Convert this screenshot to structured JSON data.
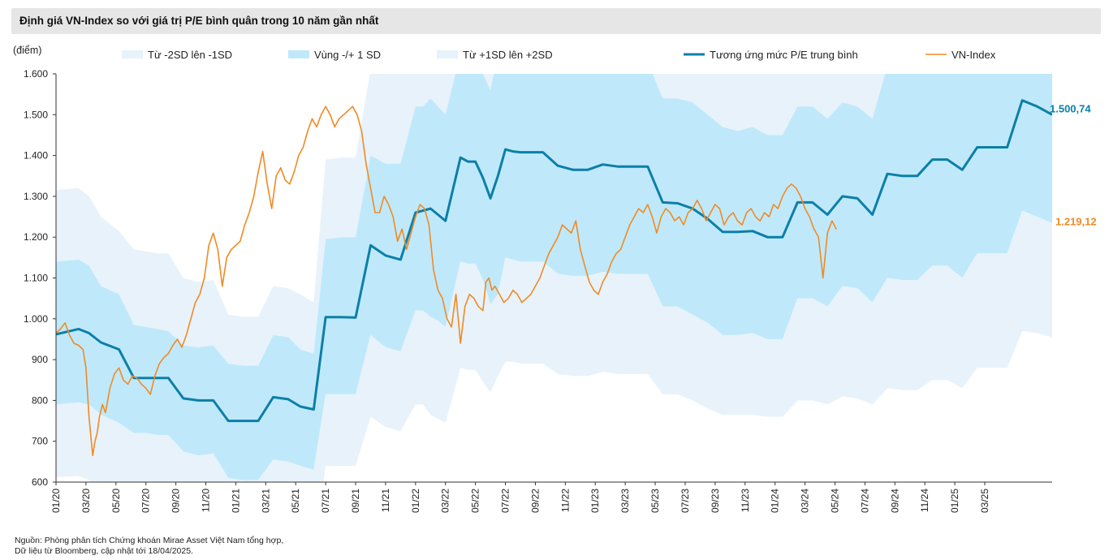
{
  "header": {
    "title": "Định giá VN-Index so với giá trị P/E bình quân trong 10 năm gần nhất"
  },
  "footer": {
    "source_line1": "Nguồn: Phòng phân tích Chứng khoán Mirae Asset Việt Nam tổng hợp,",
    "source_line2": "Dữ liệu từ Bloomberg, cập nhật tới 18/04/2025."
  },
  "colors": {
    "band_outer": "#e8f2fa",
    "band_inner": "#bfe9fa",
    "mean_line": "#0c7fa8",
    "vnindex_line": "#f08a24"
  },
  "chart_data": {
    "type": "area",
    "ylabel": "(điểm)",
    "ylim": [
      600,
      1600
    ],
    "yticks": [
      "1.600",
      "1.500",
      "1.400",
      "1.300",
      "1.200",
      "1.100",
      "1.000",
      "900",
      "800",
      "700",
      "600"
    ],
    "ytick_values": [
      1600,
      1500,
      1400,
      1300,
      1200,
      1100,
      1000,
      900,
      800,
      700,
      600
    ],
    "xlim": [
      "01/20",
      "05/25"
    ],
    "xticks": [
      "01/20",
      "03/20",
      "05/20",
      "07/20",
      "09/20",
      "11/20",
      "01/21",
      "03/21",
      "05/21",
      "07/21",
      "09/21",
      "11/21",
      "01/22",
      "03/22",
      "05/22",
      "07/22",
      "09/22",
      "11/22",
      "01/23",
      "03/23",
      "05/23",
      "07/23",
      "09/23",
      "11/23",
      "01/24",
      "03/24",
      "05/24",
      "07/24",
      "09/24",
      "11/24",
      "01/25",
      "03/25"
    ],
    "grid": false,
    "legend_position": "top",
    "legend": [
      {
        "label": "Từ -2SD lên -1SD",
        "kind": "band_outer"
      },
      {
        "label": "Vùng -/+ 1 SD",
        "kind": "band_inner"
      },
      {
        "label": "Từ +1SD lên +2SD",
        "kind": "band_outer"
      },
      {
        "label": "Tương ứng mức P/E trung bình",
        "kind": "mean_line"
      },
      {
        "label": "VN-Index",
        "kind": "vnindex_line"
      }
    ],
    "x_months": [
      0,
      1.5,
      2.2,
      3,
      4.2,
      5.2,
      6,
      6.8,
      7.5,
      8.5,
      9.5,
      10.5,
      11.5,
      12.5,
      13.5,
      14.5,
      15.5,
      16.3,
      17.2,
      18,
      19,
      20,
      21,
      22,
      23,
      24,
      24.5,
      25,
      25.5,
      26,
      27,
      27.5,
      28,
      28.5,
      29,
      29.5,
      30,
      30.5,
      31,
      31.5,
      32.5,
      33.5,
      34.5,
      35.5,
      36.5,
      37.5,
      38.5,
      39.5,
      40.5,
      41.5,
      42.5,
      43.5,
      44.5,
      45.5,
      46.5,
      47.5,
      48.5,
      49.5,
      50.5,
      51.5,
      52.5,
      53.5,
      54.5,
      55.5,
      56.5,
      57.5,
      58.5,
      59.5,
      60.5,
      61.5,
      62.5,
      63.5,
      64.5,
      65.5,
      66.5
    ],
    "mean": [
      962,
      975,
      965,
      942,
      925,
      855,
      855,
      855,
      855,
      805,
      800,
      800,
      750,
      750,
      750,
      808,
      803,
      785,
      778,
      1004,
      1004,
      1003,
      1180,
      1155,
      1145,
      1260,
      1265,
      1270,
      1255,
      1240,
      1395,
      1385,
      1385,
      1345,
      1295,
      1350,
      1415,
      1410,
      1408,
      1408,
      1408,
      1375,
      1365,
      1365,
      1378,
      1373,
      1373,
      1373,
      1285,
      1283,
      1270,
      1245,
      1213,
      1213,
      1215,
      1200,
      1200,
      1285,
      1285,
      1255,
      1300,
      1295,
      1255,
      1355,
      1350,
      1350,
      1390,
      1390,
      1365,
      1420,
      1420,
      1420,
      1535,
      1520,
      1500
    ],
    "plus1sd": [
      1140,
      1145,
      1130,
      1080,
      1060,
      985,
      980,
      975,
      970,
      935,
      930,
      935,
      890,
      885,
      885,
      960,
      955,
      925,
      915,
      1195,
      1200,
      1200,
      1400,
      1380,
      1380,
      1520,
      1520,
      1540,
      1520,
      1500,
      1650,
      1640,
      1640,
      1600,
      1560,
      1650,
      1680,
      1680,
      1680,
      1680,
      1680,
      1640,
      1630,
      1630,
      1640,
      1630,
      1630,
      1630,
      1540,
      1540,
      1530,
      1500,
      1470,
      1460,
      1470,
      1450,
      1450,
      1520,
      1520,
      1490,
      1530,
      1520,
      1490,
      1620,
      1620,
      1620,
      1660,
      1660,
      1640,
      1680,
      1690,
      1700,
      1800,
      1790,
      1780
    ],
    "minus1sd": [
      790,
      795,
      790,
      765,
      745,
      720,
      720,
      715,
      715,
      675,
      665,
      670,
      610,
      605,
      605,
      655,
      650,
      640,
      630,
      815,
      815,
      815,
      960,
      930,
      920,
      1020,
      1020,
      1005,
      995,
      980,
      1140,
      1135,
      1135,
      1095,
      1035,
      1060,
      1150,
      1145,
      1140,
      1140,
      1140,
      1110,
      1105,
      1105,
      1115,
      1110,
      1110,
      1110,
      1030,
      1030,
      1010,
      990,
      960,
      960,
      965,
      950,
      950,
      1050,
      1050,
      1030,
      1080,
      1075,
      1040,
      1100,
      1095,
      1095,
      1130,
      1130,
      1100,
      1160,
      1160,
      1160,
      1265,
      1250,
      1235
    ],
    "plus2sd": [
      1315,
      1320,
      1300,
      1250,
      1215,
      1170,
      1165,
      1160,
      1160,
      1100,
      1090,
      1095,
      1010,
      1005,
      1005,
      1080,
      1075,
      1060,
      1040,
      1390,
      1395,
      1395,
      1610,
      1605,
      1600,
      1760,
      1760,
      1790,
      1780,
      1770,
      1910,
      1890,
      1890,
      1850,
      1820,
      1880,
      1940,
      1940,
      1930,
      1930,
      1930,
      1880,
      1870,
      1870,
      1880,
      1870,
      1870,
      1870,
      1790,
      1790,
      1770,
      1740,
      1720,
      1720,
      1720,
      1700,
      1700,
      1760,
      1760,
      1740,
      1780,
      1770,
      1750,
      1860,
      1860,
      1860,
      1890,
      1890,
      1870,
      1900,
      1910,
      1920,
      2050,
      2040,
      2020
    ],
    "minus2sd": [
      612,
      615,
      605,
      580,
      560,
      545,
      545,
      540,
      540,
      505,
      495,
      500,
      430,
      425,
      425,
      470,
      465,
      445,
      425,
      640,
      640,
      640,
      760,
      735,
      725,
      790,
      790,
      765,
      755,
      745,
      880,
      875,
      875,
      845,
      820,
      860,
      895,
      895,
      890,
      890,
      890,
      865,
      860,
      860,
      870,
      865,
      865,
      865,
      815,
      815,
      800,
      780,
      765,
      765,
      765,
      760,
      760,
      800,
      800,
      790,
      810,
      805,
      790,
      830,
      825,
      825,
      850,
      850,
      830,
      880,
      880,
      880,
      970,
      965,
      955
    ],
    "vnindex_x": [
      0,
      0.3,
      0.6,
      0.9,
      1.2,
      1.5,
      1.8,
      2.0,
      2.2,
      2.45,
      2.6,
      2.75,
      2.9,
      3.1,
      3.3,
      3.6,
      3.9,
      4.2,
      4.5,
      4.8,
      5.1,
      5.4,
      5.7,
      6.0,
      6.3,
      6.6,
      6.9,
      7.2,
      7.5,
      7.8,
      8.1,
      8.4,
      8.7,
      9.0,
      9.3,
      9.6,
      9.9,
      10.2,
      10.5,
      10.8,
      11.1,
      11.4,
      11.7,
      12.0,
      12.3,
      12.6,
      12.9,
      13.2,
      13.5,
      13.8,
      14.1,
      14.4,
      14.7,
      15.0,
      15.3,
      15.6,
      15.9,
      16.2,
      16.5,
      16.8,
      17.1,
      17.4,
      17.7,
      18.0,
      18.3,
      18.6,
      18.9,
      19.2,
      19.5,
      19.8,
      20.1,
      20.4,
      20.7,
      21.0,
      21.3,
      21.6,
      21.9,
      22.2,
      22.5,
      22.8,
      23.1,
      23.4,
      23.7,
      24.0,
      24.3,
      24.6,
      24.9,
      25.2,
      25.5,
      25.8,
      26.1,
      26.4,
      26.7,
      27.0,
      27.3,
      27.6,
      27.9,
      28.2,
      28.5,
      28.7,
      28.9,
      29.1,
      29.3,
      29.6,
      29.9,
      30.2,
      30.5,
      30.8,
      31.1,
      31.4,
      31.7,
      32.0,
      32.3,
      32.6,
      32.9,
      33.2,
      33.5,
      33.8,
      34.1,
      34.4,
      34.7,
      35.0,
      35.3,
      35.6,
      35.9,
      36.2,
      36.5,
      36.8,
      37.1,
      37.4,
      37.7,
      38.0,
      38.3,
      38.6,
      38.9,
      39.2,
      39.5,
      39.8,
      40.1,
      40.4,
      40.7,
      41.0,
      41.3,
      41.6,
      41.9,
      42.2,
      42.5,
      42.8,
      43.1,
      43.4,
      43.7,
      44.0,
      44.3,
      44.6,
      44.9,
      45.2,
      45.5,
      45.8,
      46.1,
      46.4,
      46.7,
      47.0,
      47.3,
      47.6,
      47.9,
      48.2,
      48.5,
      48.8,
      49.1,
      49.4,
      49.7,
      50.0,
      50.3,
      50.6,
      50.9,
      51.2,
      51.5,
      51.8,
      52.1,
      52.4,
      52.7,
      53.0,
      53.3,
      53.6,
      53.9,
      54.2,
      54.5,
      54.8,
      55.1,
      55.4,
      55.7,
      56.0,
      56.3,
      56.6,
      56.9,
      57.2,
      57.5,
      57.8,
      58.1,
      58.4,
      58.7,
      59.0,
      59.3,
      59.6,
      59.9,
      60.2,
      60.5,
      60.8,
      61.1,
      61.4,
      61.7,
      62.0,
      62.3,
      62.6,
      62.9,
      63.2,
      63.5,
      63.8,
      64.1,
      64.4,
      64.7,
      65.0,
      65.3,
      65.45,
      65.6,
      65.75,
      65.9
    ],
    "vnindex": [
      965,
      975,
      990,
      960,
      940,
      935,
      925,
      880,
      760,
      665,
      700,
      720,
      760,
      790,
      770,
      830,
      865,
      880,
      850,
      840,
      860,
      855,
      840,
      830,
      815,
      860,
      890,
      905,
      915,
      935,
      950,
      930,
      960,
      1000,
      1040,
      1060,
      1100,
      1180,
      1210,
      1170,
      1080,
      1150,
      1170,
      1180,
      1190,
      1230,
      1260,
      1300,
      1360,
      1410,
      1330,
      1270,
      1350,
      1370,
      1340,
      1330,
      1360,
      1400,
      1420,
      1460,
      1490,
      1470,
      1500,
      1520,
      1500,
      1470,
      1490,
      1500,
      1510,
      1520,
      1500,
      1460,
      1380,
      1320,
      1260,
      1260,
      1300,
      1280,
      1250,
      1190,
      1220,
      1170,
      1210,
      1250,
      1280,
      1270,
      1230,
      1120,
      1070,
      1050,
      1000,
      980,
      1060,
      940,
      1030,
      1060,
      1050,
      1030,
      1020,
      1090,
      1100,
      1070,
      1080,
      1060,
      1040,
      1050,
      1070,
      1060,
      1040,
      1050,
      1060,
      1080,
      1100,
      1130,
      1160,
      1180,
      1200,
      1230,
      1220,
      1210,
      1240,
      1170,
      1130,
      1090,
      1070,
      1060,
      1090,
      1110,
      1140,
      1160,
      1170,
      1200,
      1230,
      1250,
      1270,
      1260,
      1280,
      1250,
      1210,
      1250,
      1270,
      1260,
      1240,
      1250,
      1230,
      1260,
      1270,
      1290,
      1270,
      1240,
      1260,
      1280,
      1270,
      1230,
      1250,
      1260,
      1240,
      1230,
      1260,
      1270,
      1250,
      1240,
      1260,
      1250,
      1280,
      1270,
      1300,
      1320,
      1330,
      1320,
      1300,
      1270,
      1250,
      1220,
      1200,
      1100,
      1210,
      1240,
      1219
    ]
  },
  "annotations": {
    "mean_last_label": "1.500,74",
    "vnindex_last_label": "1.219,12"
  }
}
